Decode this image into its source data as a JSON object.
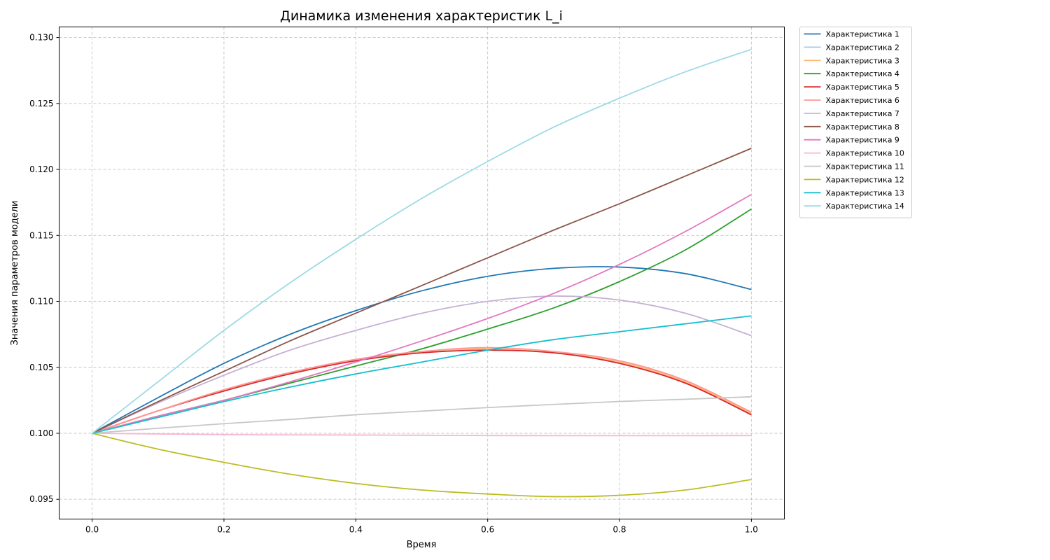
{
  "chart_data": {
    "type": "line",
    "title": "Динамика изменения характеристик L_i",
    "xlabel": "Время",
    "ylabel": "Значения параметров модели",
    "xlim": [
      -0.05,
      1.05
    ],
    "ylim": [
      0.0935,
      0.1308
    ],
    "x_ticks": [
      0.0,
      0.2,
      0.4,
      0.6,
      0.8,
      1.0
    ],
    "x_tick_labels": [
      "0.0",
      "0.2",
      "0.4",
      "0.6",
      "0.8",
      "1.0"
    ],
    "y_ticks": [
      0.095,
      0.1,
      0.105,
      0.11,
      0.115,
      0.12,
      0.125,
      0.13
    ],
    "y_tick_labels": [
      "0.095",
      "0.100",
      "0.105",
      "0.110",
      "0.115",
      "0.120",
      "0.125",
      "0.130"
    ],
    "grid": true,
    "legend_position": "outside-top-right",
    "x": [
      0.0,
      0.1,
      0.2,
      0.3,
      0.4,
      0.5,
      0.6,
      0.7,
      0.8,
      0.9,
      1.0
    ],
    "series": [
      {
        "name": "Характеристика 1",
        "color": "#1f77b4",
        "values": [
          0.1,
          0.1027,
          0.1053,
          0.1075,
          0.1093,
          0.1108,
          0.1119,
          0.1125,
          0.1126,
          0.1121,
          0.1109
        ]
      },
      {
        "name": "Характеристика 2",
        "color": "#aec7e8",
        "values": [
          0.1,
          0.1017,
          0.1033,
          0.1046,
          0.1056,
          0.1062,
          0.1064,
          0.1061,
          0.1054,
          0.1039,
          0.1015
        ]
      },
      {
        "name": "Характеристика 3",
        "color": "#ffbb78",
        "values": [
          0.1,
          0.1017,
          0.1033,
          0.1046,
          0.1056,
          0.1062,
          0.1064,
          0.1061,
          0.1054,
          0.1039,
          0.1015
        ]
      },
      {
        "name": "Характеристика 4",
        "color": "#2ca02c",
        "values": [
          0.1,
          0.1013,
          0.1025,
          0.1038,
          0.1051,
          0.1064,
          0.1079,
          0.1095,
          0.1115,
          0.1139,
          0.117
        ]
      },
      {
        "name": "Характеристика 5",
        "color": "#d62728",
        "values": [
          0.1,
          0.1017,
          0.1032,
          0.1045,
          0.1055,
          0.1061,
          0.1063,
          0.1061,
          0.1053,
          0.1038,
          0.1014
        ]
      },
      {
        "name": "Характеристика 6",
        "color": "#ff9896",
        "values": [
          0.1,
          0.1017,
          0.1033,
          0.1046,
          0.1056,
          0.1062,
          0.1065,
          0.1062,
          0.1055,
          0.104,
          0.1016
        ]
      },
      {
        "name": "Характеристика 7",
        "color": "#c5b0d5",
        "values": [
          0.1,
          0.1023,
          0.1044,
          0.1063,
          0.1078,
          0.1091,
          0.11,
          0.1104,
          0.1101,
          0.1091,
          0.1074
        ]
      },
      {
        "name": "Характеристика 8",
        "color": "#8c564b",
        "values": [
          0.1,
          0.1024,
          0.1047,
          0.107,
          0.1091,
          0.1112,
          0.1133,
          0.1154,
          0.1174,
          0.1195,
          0.1216
        ]
      },
      {
        "name": "Характеристика 9",
        "color": "#e377c2",
        "values": [
          0.1,
          0.1013,
          0.1025,
          0.1039,
          0.1054,
          0.107,
          0.1087,
          0.1106,
          0.1128,
          0.1153,
          0.1181
        ]
      },
      {
        "name": "Характеристика 10",
        "color": "#f7b6d2",
        "values": [
          0.1,
          0.09995,
          0.0999,
          0.09988,
          0.09987,
          0.09985,
          0.09983,
          0.09982,
          0.09982,
          0.09982,
          0.09983
        ]
      },
      {
        "name": "Характеристика 11",
        "color": "#c7c7c7",
        "values": [
          0.1,
          0.10038,
          0.10073,
          0.10105,
          0.10141,
          0.10168,
          0.10195,
          0.10219,
          0.10241,
          0.10258,
          0.10277
        ]
      },
      {
        "name": "Характеристика 12",
        "color": "#bcbd22",
        "values": [
          0.1,
          0.0988,
          0.0978,
          0.0969,
          0.0962,
          0.0957,
          0.0954,
          0.0952,
          0.0953,
          0.0957,
          0.0965
        ]
      },
      {
        "name": "Характеристика 13",
        "color": "#17becf",
        "values": [
          0.1,
          0.1012,
          0.1024,
          0.1035,
          0.1045,
          0.1054,
          0.1063,
          0.1071,
          0.1077,
          0.1083,
          0.1089
        ]
      },
      {
        "name": "Характеристика 14",
        "color": "#9edae5",
        "values": [
          0.1,
          0.1039,
          0.1078,
          0.1114,
          0.1147,
          0.1178,
          0.1206,
          0.1232,
          0.1254,
          0.1274,
          0.1291
        ]
      }
    ]
  }
}
